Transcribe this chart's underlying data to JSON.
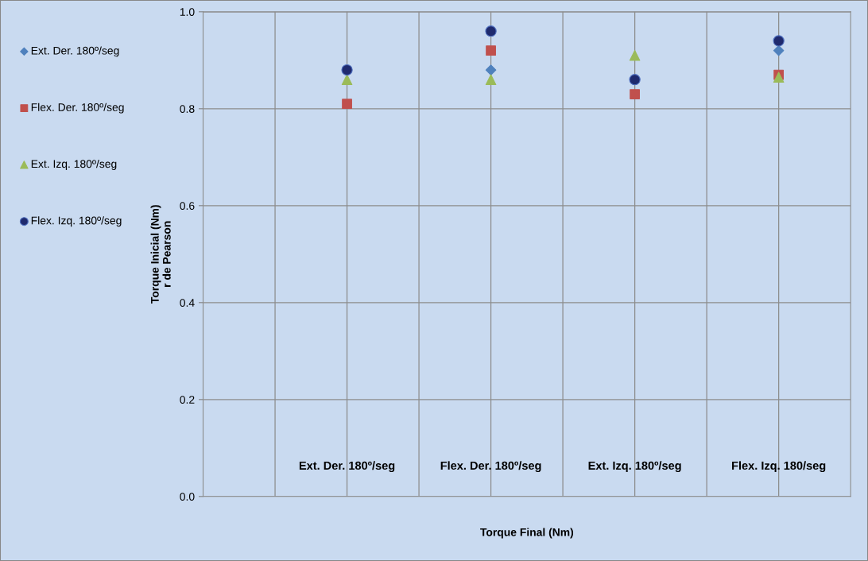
{
  "chart_data": {
    "type": "scatter",
    "xlabel": "Torque Final (Nm)",
    "ylabel": "Torque Inicial (Nm)\nr de Pearson",
    "categories": [
      "Ext. Der. 180º/seg",
      "Flex. Der. 180º/seg",
      "Ext. Izq. 180º/seg",
      "Flex. Izq. 180/seg"
    ],
    "ylim": [
      0,
      1
    ],
    "yticks": [
      {
        "value": 0,
        "label": "0.0"
      },
      {
        "value": 0.2,
        "label": "0.2"
      },
      {
        "value": 0.4,
        "label": "0.4"
      },
      {
        "value": 0.6,
        "label": "0.6"
      },
      {
        "value": 0.8,
        "label": "0.8"
      },
      {
        "value": 1,
        "label": "1.0"
      }
    ],
    "grid": true,
    "legend": "left",
    "series": [
      {
        "name": "Ext. Der. 180º/seg",
        "color": "#4f81bd",
        "marker": "diamond",
        "values": [
          null,
          0.88,
          null,
          0.92
        ]
      },
      {
        "name": "Flex. Der. 180º/seg",
        "color": "#c0504d",
        "marker": "square",
        "values": [
          0.81,
          0.92,
          0.83,
          0.87
        ]
      },
      {
        "name": "Ext. Izq. 180º/seg",
        "color": "#9bbb59",
        "marker": "triangle",
        "values": [
          0.86,
          0.86,
          0.91,
          0.865
        ]
      },
      {
        "name": "Flex. Izq. 180º/seg",
        "color": "#1f2a6e",
        "marker": "circle",
        "values": [
          0.88,
          0.96,
          0.86,
          0.94
        ]
      }
    ]
  }
}
